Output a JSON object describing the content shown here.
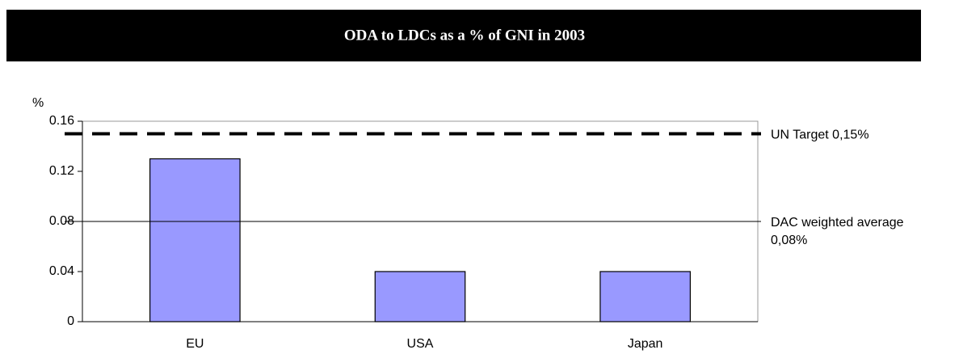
{
  "chart_data": {
    "type": "bar",
    "title": "ODA to LDCs as a % of GNI in 2003",
    "y_label": "%",
    "categories": [
      "EU",
      "USA",
      "Japan"
    ],
    "values": [
      0.13,
      0.04,
      0.04
    ],
    "color": "#9999ff",
    "ylim": [
      0,
      0.16
    ],
    "yticks": [
      0,
      0.04,
      0.08,
      0.12,
      0.16
    ],
    "reference_lines": [
      {
        "label_lines": [
          "UN Target 0,15%"
        ],
        "value": 0.15,
        "style": "dashed"
      },
      {
        "label_lines": [
          "DAC weighted average",
          "0,08%"
        ],
        "value": 0.08,
        "style": "solid"
      }
    ]
  }
}
